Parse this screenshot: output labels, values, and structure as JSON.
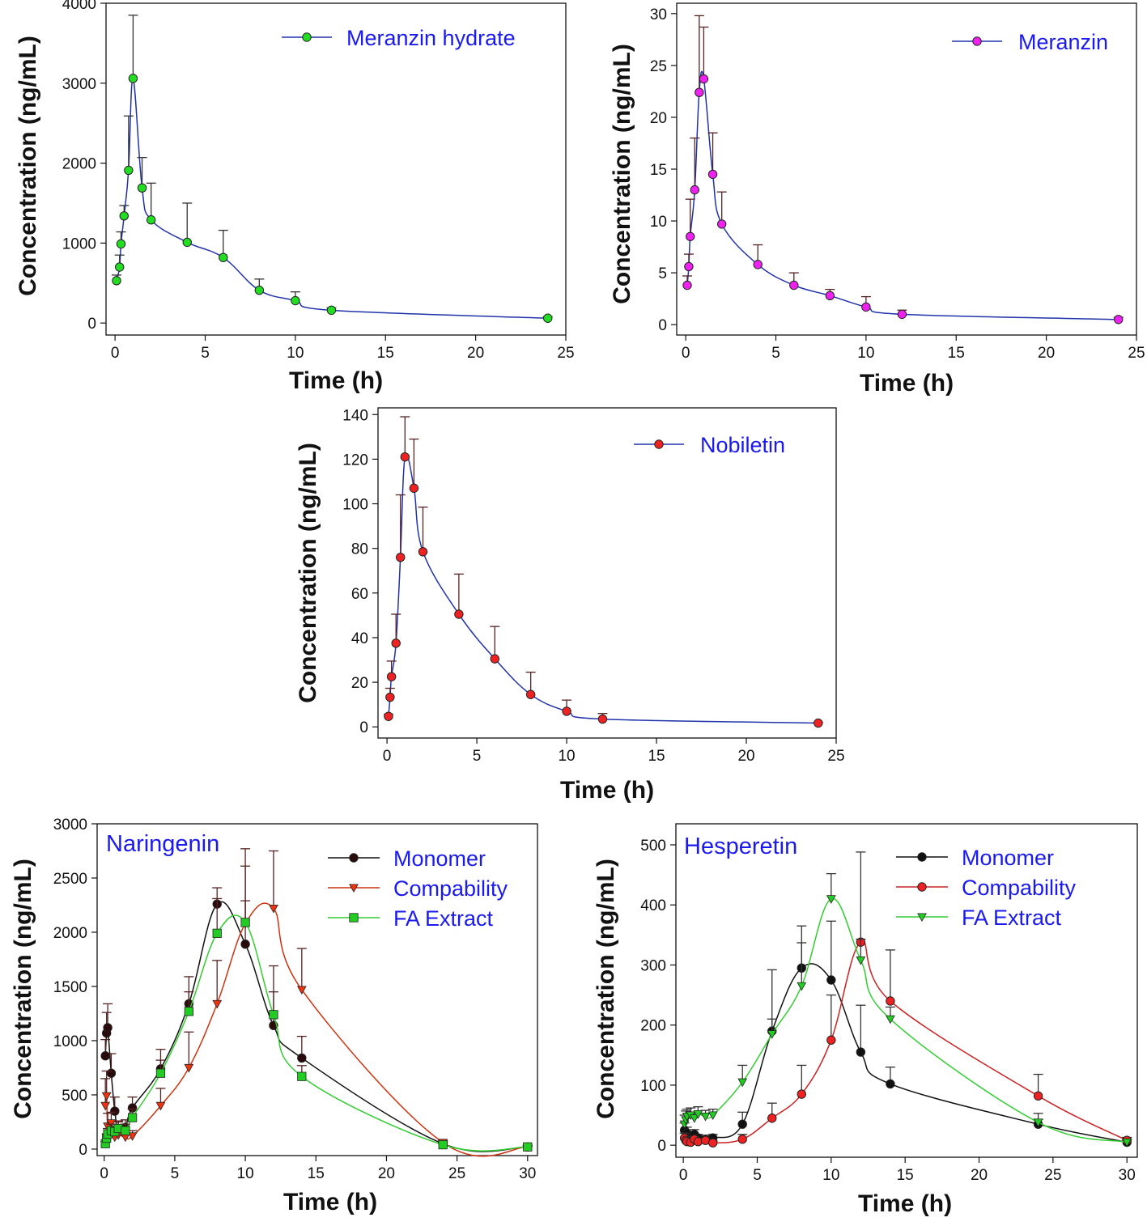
{
  "chart_data": [
    {
      "type": "line",
      "title": "",
      "xlabel": "Time (h)",
      "ylabel": "Concentration (ng/mL)",
      "xlim": [
        -0.5,
        25
      ],
      "ylim": [
        -150,
        4000
      ],
      "xticks": [
        0,
        5,
        10,
        15,
        20,
        25
      ],
      "yticks": [
        0,
        1000,
        2000,
        3000,
        4000
      ],
      "series": [
        {
          "name": "Meranzin hydrate",
          "color": "#22dd22",
          "marker": "circle",
          "line_color": "#2233aa",
          "x": [
            0.083,
            0.25,
            0.33,
            0.5,
            0.75,
            1,
            1.5,
            2,
            4,
            6,
            8,
            10,
            12,
            24
          ],
          "y": [
            530,
            700,
            990,
            1340,
            1910,
            3060,
            1690,
            1290,
            1010,
            820,
            410,
            280,
            160,
            60
          ],
          "err": [
            70,
            150,
            150,
            130,
            680,
            790,
            380,
            460,
            490,
            340,
            140,
            110,
            30,
            20
          ]
        }
      ]
    },
    {
      "type": "line",
      "title": "",
      "xlabel": "Time (h)",
      "ylabel": "Concentration (ng/mL)",
      "xlim": [
        -0.5,
        25
      ],
      "ylim": [
        -1,
        31
      ],
      "xticks": [
        0,
        5,
        10,
        15,
        20,
        25
      ],
      "yticks": [
        0,
        5,
        10,
        15,
        20,
        25,
        30
      ],
      "series": [
        {
          "name": "Meranzin",
          "color": "#ee22ee",
          "marker": "circle",
          "line_color": "#2233aa",
          "x": [
            0.083,
            0.17,
            0.25,
            0.5,
            0.75,
            1,
            1.5,
            2,
            4,
            6,
            8,
            10,
            12,
            24
          ],
          "y": [
            3.8,
            5.6,
            8.5,
            13,
            22.4,
            23.7,
            14.5,
            9.7,
            5.8,
            3.8,
            2.8,
            1.7,
            1,
            0.5
          ],
          "err": [
            0.9,
            1.2,
            3.6,
            5,
            7.4,
            5,
            4,
            3.1,
            1.9,
            1.2,
            0.6,
            1,
            0.4,
            0.2
          ]
        }
      ]
    },
    {
      "type": "line",
      "title": "",
      "xlabel": "Time (h)",
      "ylabel": "Concentration (ng/mL)",
      "xlim": [
        -0.5,
        25
      ],
      "ylim": [
        -5,
        143
      ],
      "xticks": [
        0,
        5,
        10,
        15,
        20,
        25
      ],
      "yticks": [
        0,
        20,
        40,
        60,
        80,
        100,
        120,
        140
      ],
      "series": [
        {
          "name": "Nobiletin",
          "color": "#ee2222",
          "marker": "circle",
          "line_color": "#2233aa",
          "x": [
            0.083,
            0.17,
            0.25,
            0.5,
            0.75,
            1,
            1.5,
            2,
            4,
            6,
            8,
            10,
            12,
            24
          ],
          "y": [
            4.7,
            13.3,
            22.5,
            37.5,
            76,
            121,
            107,
            78.5,
            50.5,
            30.5,
            14.5,
            7,
            3.5,
            1.7
          ],
          "err": [
            1,
            4,
            7,
            13,
            28,
            18,
            22,
            20,
            18,
            14.5,
            10,
            5,
            2.5,
            0.3
          ]
        }
      ]
    },
    {
      "type": "line",
      "title": "Naringenin",
      "xlabel": "Time (h)",
      "ylabel": "Concentration (ng/mL)",
      "xlim": [
        -0.5,
        30.7
      ],
      "ylim": [
        -60,
        3000
      ],
      "xticks": [
        0,
        5,
        10,
        15,
        20,
        25,
        30
      ],
      "yticks": [
        0,
        500,
        1000,
        1500,
        2000,
        2500,
        3000
      ],
      "series": [
        {
          "name": "Monomer",
          "color": "#2a0a0a",
          "marker": "circle",
          "line_color": "#111111",
          "x": [
            0.083,
            0.17,
            0.25,
            0.5,
            0.75,
            1,
            1.5,
            2,
            4,
            6,
            8,
            10,
            12,
            14,
            24,
            30
          ],
          "y": [
            860,
            1070,
            1120,
            700,
            350,
            180,
            200,
            380,
            740,
            1340,
            2260,
            1890,
            1140,
            840,
            50,
            20
          ],
          "err": [
            150,
            190,
            220,
            180,
            130,
            80,
            70,
            100,
            180,
            250,
            150,
            720,
            550,
            200,
            20,
            15
          ]
        },
        {
          "name": "Compability",
          "color": "#ee3311",
          "marker": "triangle-down",
          "line_color": "#cc3311",
          "x": [
            0.083,
            0.17,
            0.25,
            0.5,
            0.75,
            1,
            1.5,
            2,
            4,
            6,
            8,
            10,
            12,
            14,
            24,
            30
          ],
          "y": [
            400,
            490,
            210,
            240,
            110,
            130,
            110,
            120,
            400,
            750,
            1340,
            2080,
            2220,
            1470,
            60,
            20
          ],
          "err": [
            250,
            230,
            120,
            100,
            60,
            50,
            40,
            50,
            160,
            330,
            400,
            690,
            530,
            380,
            20,
            10
          ]
        },
        {
          "name": "FA Extract",
          "color": "#22cc22",
          "marker": "square",
          "line_color": "#33cc33",
          "x": [
            0.083,
            0.17,
            0.25,
            0.5,
            0.75,
            1,
            1.5,
            2,
            4,
            6,
            8,
            10,
            12,
            14,
            24,
            30
          ],
          "y": [
            50,
            100,
            140,
            170,
            160,
            190,
            170,
            290,
            700,
            1270,
            1990,
            2090,
            1240,
            670,
            40,
            20
          ],
          "err": [
            20,
            40,
            50,
            60,
            50,
            60,
            60,
            80,
            120,
            180,
            320,
            200,
            210,
            100,
            20,
            10
          ]
        }
      ]
    },
    {
      "type": "line",
      "title": "Hesperetin",
      "xlabel": "Time (h)",
      "ylabel": "Concentration  (ng/mL)",
      "xlim": [
        -0.5,
        30.7
      ],
      "ylim": [
        -20,
        535
      ],
      "xticks": [
        0,
        5,
        10,
        15,
        20,
        25,
        30
      ],
      "yticks": [
        0,
        100,
        200,
        300,
        400,
        500
      ],
      "series": [
        {
          "name": "Monomer",
          "color": "#111111",
          "marker": "circle",
          "line_color": "#111111",
          "x": [
            0.083,
            0.17,
            0.25,
            0.5,
            0.75,
            1,
            1.5,
            2,
            4,
            6,
            8,
            10,
            12,
            14,
            24,
            30
          ],
          "y": [
            25,
            15,
            20,
            10,
            18,
            12,
            10,
            12,
            35,
            190,
            295,
            275,
            155,
            102,
            35,
            5
          ],
          "err": [
            12,
            10,
            10,
            8,
            8,
            6,
            6,
            6,
            20,
            102,
            70,
            98,
            78,
            28,
            8,
            5
          ]
        },
        {
          "name": "Compability",
          "color": "#ee2222",
          "marker": "circle",
          "line_color": "#cc2222",
          "x": [
            0.083,
            0.17,
            0.25,
            0.5,
            0.75,
            1,
            1.5,
            2,
            4,
            6,
            8,
            10,
            12,
            14,
            24,
            30
          ],
          "y": [
            12,
            8,
            6,
            5,
            10,
            6,
            8,
            4,
            10,
            45,
            85,
            175,
            338,
            240,
            82,
            8
          ],
          "err": [
            8,
            6,
            5,
            4,
            5,
            4,
            4,
            3,
            8,
            25,
            48,
            75,
            150,
            85,
            36,
            5
          ]
        },
        {
          "name": "FA Extract",
          "color": "#22cc22",
          "marker": "triangle-down",
          "line_color": "#33cc33",
          "x": [
            0.083,
            0.17,
            0.25,
            0.5,
            0.75,
            1,
            1.5,
            2,
            4,
            6,
            8,
            10,
            12,
            14,
            24,
            30
          ],
          "y": [
            35,
            42,
            48,
            50,
            45,
            52,
            48,
            50,
            105,
            185,
            265,
            410,
            308,
            210,
            38,
            5
          ],
          "err": [
            15,
            15,
            12,
            12,
            10,
            12,
            10,
            10,
            28,
            25,
            72,
            42,
            35,
            20,
            15,
            5
          ]
        }
      ]
    }
  ]
}
